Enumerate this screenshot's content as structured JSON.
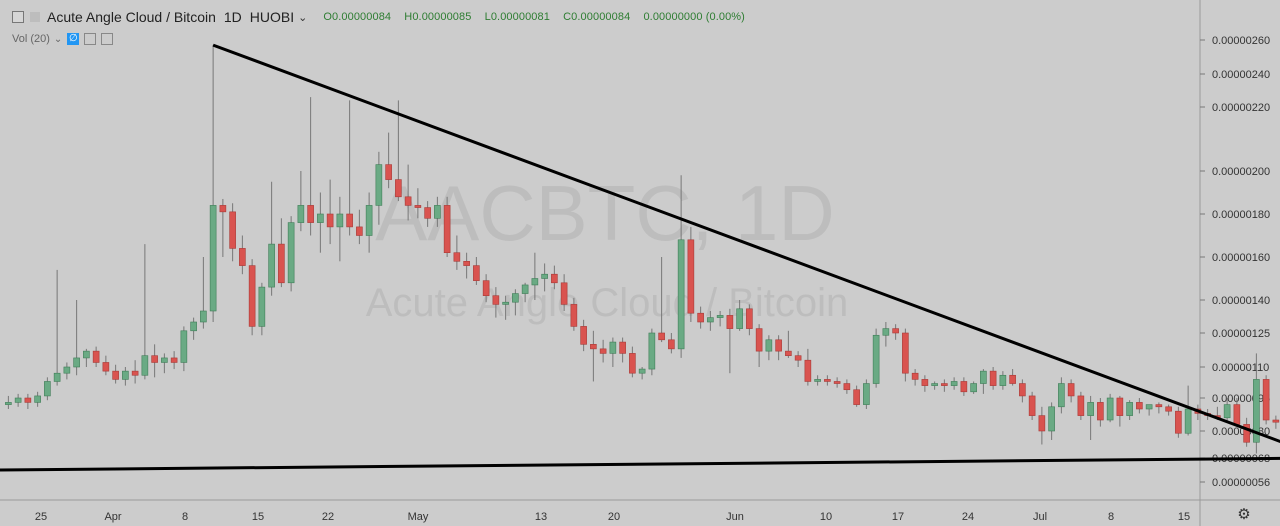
{
  "header": {
    "title": "Acute Angle Cloud / Bitcoin",
    "interval": "1D",
    "exchange": "HUOBI",
    "open": "O0.00000084",
    "high": "H0.00000085",
    "low": "L0.00000081",
    "close": "C0.00000084",
    "change": "0.00000000 (0.00%)"
  },
  "volume_indicator": {
    "label": "Vol (20)"
  },
  "watermark": {
    "symbol": "AACBTC, 1D",
    "name": "Acute Angle Cloud / Bitcoin"
  },
  "icons": {
    "settings": "gear-icon",
    "collapse": "collapse-icon",
    "eye": "eye-off-icon"
  },
  "colors": {
    "background": "#cccccc",
    "up": "#6aaa84",
    "down": "#d9534f",
    "trendline": "#000000",
    "wick": "#777777"
  },
  "chart_data": {
    "type": "candlestick",
    "y_axis_labels": [
      "0.00000260",
      "0.00000240",
      "0.00000220",
      "0.00000200",
      "0.00000180",
      "0.00000160",
      "0.00000140",
      "0.00000125",
      "0.00000110",
      "0.00000095",
      "0.00000080",
      "0.00000068",
      "0.00000056"
    ],
    "x_axis_labels": [
      "25",
      "Apr",
      "8",
      "15",
      "22",
      "May",
      "13",
      "20",
      "Jun",
      "10",
      "17",
      "24",
      "Jul",
      "8",
      "15"
    ],
    "ohlc": [
      [
        9.2e-07,
        9.6e-07,
        9e-07,
        9.3e-07
      ],
      [
        9.3e-07,
        9.7e-07,
        9.1e-07,
        9.5e-07
      ],
      [
        9.5e-07,
        9.7e-07,
        9e-07,
        9.3e-07
      ],
      [
        9.3e-07,
        9.8e-07,
        9.1e-07,
        9.6e-07
      ],
      [
        9.6e-07,
        1.05e-06,
        9.4e-07,
        1.03e-06
      ],
      [
        1.03e-06,
        1.54e-06,
        1.01e-06,
        1.07e-06
      ],
      [
        1.07e-06,
        1.12e-06,
        1.04e-06,
        1.1e-06
      ],
      [
        1.1e-06,
        1.4e-06,
        1.06e-06,
        1.14e-06
      ],
      [
        1.14e-06,
        1.18e-06,
        1.1e-06,
        1.17e-06
      ],
      [
        1.17e-06,
        1.19e-06,
        1.1e-06,
        1.12e-06
      ],
      [
        1.12e-06,
        1.15e-06,
        1.06e-06,
        1.08e-06
      ],
      [
        1.08e-06,
        1.11e-06,
        1.02e-06,
        1.04e-06
      ],
      [
        1.04e-06,
        1.1e-06,
        1.01e-06,
        1.08e-06
      ],
      [
        1.08e-06,
        1.13e-06,
        1.02e-06,
        1.06e-06
      ],
      [
        1.06e-06,
        1.66e-06,
        1.04e-06,
        1.15e-06
      ],
      [
        1.15e-06,
        1.2e-06,
        1.05e-06,
        1.12e-06
      ],
      [
        1.12e-06,
        1.16e-06,
        1.07e-06,
        1.14e-06
      ],
      [
        1.14e-06,
        1.17e-06,
        1.09e-06,
        1.12e-06
      ],
      [
        1.12e-06,
        1.28e-06,
        1.08e-06,
        1.26e-06
      ],
      [
        1.26e-06,
        1.32e-06,
        1.22e-06,
        1.3e-06
      ],
      [
        1.3e-06,
        1.6e-06,
        1.27e-06,
        1.35e-06
      ],
      [
        1.35e-06,
        2.57e-06,
        1.3e-06,
        1.84e-06
      ],
      [
        1.84e-06,
        1.87e-06,
        1.6e-06,
        1.81e-06
      ],
      [
        1.81e-06,
        1.85e-06,
        1.58e-06,
        1.64e-06
      ],
      [
        1.64e-06,
        1.7e-06,
        1.52e-06,
        1.56e-06
      ],
      [
        1.56e-06,
        1.59e-06,
        1.24e-06,
        1.28e-06
      ],
      [
        1.28e-06,
        1.48e-06,
        1.24e-06,
        1.46e-06
      ],
      [
        1.46e-06,
        1.95e-06,
        1.42e-06,
        1.66e-06
      ],
      [
        1.66e-06,
        1.78e-06,
        1.46e-06,
        1.48e-06
      ],
      [
        1.48e-06,
        1.79e-06,
        1.44e-06,
        1.76e-06
      ],
      [
        1.76e-06,
        2e-06,
        1.72e-06,
        1.84e-06
      ],
      [
        1.84e-06,
        2.26e-06,
        1.7e-06,
        1.76e-06
      ],
      [
        1.76e-06,
        1.9e-06,
        1.62e-06,
        1.8e-06
      ],
      [
        1.8e-06,
        1.96e-06,
        1.66e-06,
        1.74e-06
      ],
      [
        1.74e-06,
        1.88e-06,
        1.58e-06,
        1.8e-06
      ],
      [
        1.8e-06,
        2.24e-06,
        1.7e-06,
        1.74e-06
      ],
      [
        1.74e-06,
        1.82e-06,
        1.66e-06,
        1.7e-06
      ],
      [
        1.7e-06,
        1.9e-06,
        1.62e-06,
        1.84e-06
      ],
      [
        1.84e-06,
        2.06e-06,
        1.75e-06,
        2.02e-06
      ],
      [
        2.02e-06,
        2.12e-06,
        1.92e-06,
        1.96e-06
      ],
      [
        1.96e-06,
        2.24e-06,
        1.86e-06,
        1.88e-06
      ],
      [
        1.88e-06,
        2.02e-06,
        1.77e-06,
        1.84e-06
      ],
      [
        1.84e-06,
        1.92e-06,
        1.78e-06,
        1.83e-06
      ],
      [
        1.83e-06,
        1.86e-06,
        1.74e-06,
        1.78e-06
      ],
      [
        1.78e-06,
        1.88e-06,
        1.74e-06,
        1.84e-06
      ],
      [
        1.84e-06,
        1.88e-06,
        1.6e-06,
        1.62e-06
      ],
      [
        1.62e-06,
        1.7e-06,
        1.54e-06,
        1.58e-06
      ],
      [
        1.58e-06,
        1.62e-06,
        1.5e-06,
        1.56e-06
      ],
      [
        1.56e-06,
        1.6e-06,
        1.47e-06,
        1.49e-06
      ],
      [
        1.49e-06,
        1.52e-06,
        1.39e-06,
        1.42e-06
      ],
      [
        1.42e-06,
        1.46e-06,
        1.32e-06,
        1.38e-06
      ],
      [
        1.38e-06,
        1.42e-06,
        1.31e-06,
        1.39e-06
      ],
      [
        1.39e-06,
        1.45e-06,
        1.33e-06,
        1.43e-06
      ],
      [
        1.43e-06,
        1.48e-06,
        1.39e-06,
        1.47e-06
      ],
      [
        1.47e-06,
        1.62e-06,
        1.4e-06,
        1.5e-06
      ],
      [
        1.5e-06,
        1.57e-06,
        1.44e-06,
        1.52e-06
      ],
      [
        1.52e-06,
        1.56e-06,
        1.45e-06,
        1.48e-06
      ],
      [
        1.48e-06,
        1.52e-06,
        1.35e-06,
        1.38e-06
      ],
      [
        1.38e-06,
        1.41e-06,
        1.26e-06,
        1.28e-06
      ],
      [
        1.28e-06,
        1.31e-06,
        1.17e-06,
        1.2e-06
      ],
      [
        1.2e-06,
        1.26e-06,
        1.03e-06,
        1.18e-06
      ],
      [
        1.18e-06,
        1.22e-06,
        1.12e-06,
        1.16e-06
      ],
      [
        1.16e-06,
        1.23e-06,
        1.1e-06,
        1.21e-06
      ],
      [
        1.21e-06,
        1.23e-06,
        1.12e-06,
        1.16e-06
      ],
      [
        1.16e-06,
        1.19e-06,
        1.05e-06,
        1.07e-06
      ],
      [
        1.07e-06,
        1.1e-06,
        1.04e-06,
        1.09e-06
      ],
      [
        1.09e-06,
        1.27e-06,
        1.06e-06,
        1.25e-06
      ],
      [
        1.25e-06,
        1.6e-06,
        1.21e-06,
        1.22e-06
      ],
      [
        1.22e-06,
        1.25e-06,
        1.16e-06,
        1.18e-06
      ],
      [
        1.18e-06,
        1.98e-06,
        1.14e-06,
        1.68e-06
      ],
      [
        1.68e-06,
        1.74e-06,
        1.3e-06,
        1.34e-06
      ],
      [
        1.34e-06,
        1.37e-06,
        1.27e-06,
        1.3e-06
      ],
      [
        1.3e-06,
        1.35e-06,
        1.26e-06,
        1.32e-06
      ],
      [
        1.32e-06,
        1.35e-06,
        1.28e-06,
        1.33e-06
      ],
      [
        1.33e-06,
        1.36e-06,
        1.07e-06,
        1.27e-06
      ],
      [
        1.27e-06,
        1.4e-06,
        1.26e-06,
        1.36e-06
      ],
      [
        1.36e-06,
        1.38e-06,
        1.24e-06,
        1.27e-06
      ],
      [
        1.27e-06,
        1.29e-06,
        1.1e-06,
        1.17e-06
      ],
      [
        1.17e-06,
        1.24e-06,
        1.13e-06,
        1.22e-06
      ],
      [
        1.22e-06,
        1.24e-06,
        1.13e-06,
        1.17e-06
      ],
      [
        1.17e-06,
        1.26e-06,
        1.14e-06,
        1.15e-06
      ],
      [
        1.15e-06,
        1.17e-06,
        1.1e-06,
        1.13e-06
      ],
      [
        1.13e-06,
        1.18e-06,
        1.01e-06,
        1.03e-06
      ],
      [
        1.03e-06,
        1.06e-06,
        1.01e-06,
        1.04e-06
      ],
      [
        1.04e-06,
        1.06e-06,
        1.01e-06,
        1.03e-06
      ],
      [
        1.03e-06,
        1.05e-06,
        1e-06,
        1.02e-06
      ],
      [
        1.02e-06,
        1.04e-06,
        9.7e-07,
        9.9e-07
      ],
      [
        9.9e-07,
        1.01e-06,
        9.1e-07,
        9.2e-07
      ],
      [
        9.2e-07,
        1.04e-06,
        9e-07,
        1.02e-06
      ],
      [
        1.02e-06,
        1.27e-06,
        1e-06,
        1.24e-06
      ],
      [
        1.24e-06,
        1.3e-06,
        1.19e-06,
        1.27e-06
      ],
      [
        1.27e-06,
        1.29e-06,
        1.22e-06,
        1.25e-06
      ],
      [
        1.25e-06,
        1.27e-06,
        1.03e-06,
        1.07e-06
      ],
      [
        1.07e-06,
        1.09e-06,
        1.01e-06,
        1.04e-06
      ],
      [
        1.04e-06,
        1.06e-06,
        9.8e-07,
        1.01e-06
      ],
      [
        1.01e-06,
        1.03e-06,
        9.9e-07,
        1.02e-06
      ],
      [
        1.02e-06,
        1.04e-06,
        9.8e-07,
        1.01e-06
      ],
      [
        1.01e-06,
        1.05e-06,
        9.9e-07,
        1.03e-06
      ],
      [
        1.03e-06,
        1.05e-06,
        9.6e-07,
        9.8e-07
      ],
      [
        9.8e-07,
        1.03e-06,
        9.7e-07,
        1.02e-06
      ],
      [
        1.02e-06,
        1.09e-06,
        9.7e-07,
        1.08e-06
      ],
      [
        1.08e-06,
        1.1e-06,
        9.9e-07,
        1.01e-06
      ],
      [
        1.01e-06,
        1.08e-06,
        9.9e-07,
        1.06e-06
      ],
      [
        1.06e-06,
        1.09e-06,
        1.01e-06,
        1.02e-06
      ],
      [
        1.02e-06,
        1.04e-06,
        9.3e-07,
        9.6e-07
      ],
      [
        9.6e-07,
        9.8e-07,
        8.5e-07,
        8.7e-07
      ],
      [
        8.7e-07,
        9.1e-07,
        7.4e-07,
        8e-07
      ],
      [
        8e-07,
        9.3e-07,
        7.6e-07,
        9.1e-07
      ],
      [
        9.1e-07,
        1.05e-06,
        8.8e-07,
        1.02e-06
      ],
      [
        1.02e-06,
        1.04e-06,
        9.3e-07,
        9.6e-07
      ],
      [
        9.6e-07,
        9.8e-07,
        8.5e-07,
        8.7e-07
      ],
      [
        8.7e-07,
        9.6e-07,
        7.6e-07,
        9.3e-07
      ],
      [
        9.3e-07,
        9.5e-07,
        8.2e-07,
        8.5e-07
      ],
      [
        8.5e-07,
        9.7e-07,
        8.4e-07,
        9.5e-07
      ],
      [
        9.5e-07,
        9.6e-07,
        8.2e-07,
        8.7e-07
      ],
      [
        8.7e-07,
        9.4e-07,
        8.5e-07,
        9.3e-07
      ],
      [
        9.3e-07,
        9.5e-07,
        8.8e-07,
        9e-07
      ],
      [
        9e-07,
        9.2e-07,
        8.7e-07,
        9.2e-07
      ],
      [
        9.2e-07,
        9.3e-07,
        8.8e-07,
        9.1e-07
      ],
      [
        9.1e-07,
        9.2e-07,
        8.7e-07,
        8.9e-07
      ],
      [
        8.9e-07,
        9.1e-07,
        7.7e-07,
        7.9e-07
      ],
      [
        7.9e-07,
        1.01e-06,
        7.8e-07,
        9e-07
      ],
      [
        9e-07,
        9.2e-07,
        8.5e-07,
        8.8e-07
      ],
      [
        8.8e-07,
        9e-07,
        8.5e-07,
        8.7e-07
      ],
      [
        8.7e-07,
        9.1e-07,
        8.5e-07,
        8.6e-07
      ],
      [
        8.6e-07,
        9.5e-07,
        8.4e-07,
        9.2e-07
      ],
      [
        9.2e-07,
        9.5e-07,
        8.3e-07,
        8.3e-07
      ],
      [
        8.3e-07,
        8.6e-07,
        7.3e-07,
        7.5e-07
      ],
      [
        7.5e-07,
        1.16e-06,
        7e-07,
        1.04e-06
      ],
      [
        1.04e-06,
        1.06e-06,
        8.3e-07,
        8.5e-07
      ],
      [
        8.5e-07,
        8.7e-07,
        8.1e-07,
        8.4e-07
      ],
      [
        8.4e-07,
        8.5e-07,
        8.1e-07,
        8.4e-07
      ]
    ],
    "trendlines": [
      {
        "from": [
          21,
          2.57e-06
        ],
        "to": [
          135,
          6.8e-07
        ]
      },
      {
        "from": [
          -1,
          6.2e-07
        ],
        "to": [
          135,
          6.8e-07
        ]
      }
    ]
  }
}
